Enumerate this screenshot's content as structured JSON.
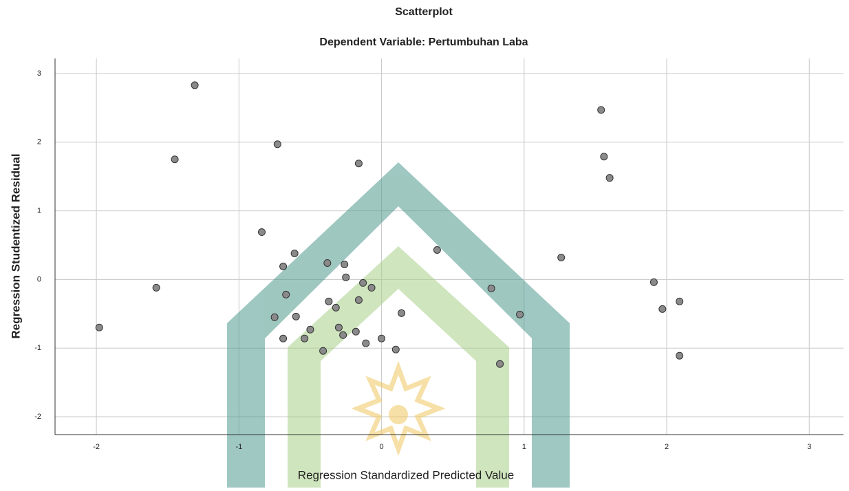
{
  "chart_data": {
    "type": "scatter",
    "title": "Scatterplot",
    "subtitle": "Dependent Variable: Pertumbuhan Laba",
    "x_label": "Regression Standardized Predicted Value",
    "y_label": "Regression Studentized Residual",
    "grid": true,
    "xlim": [
      -2.29,
      3.24
    ],
    "ylim": [
      -2.26,
      3.22
    ],
    "xticks": [
      -2,
      -1,
      0,
      1,
      2,
      3
    ],
    "yticks": [
      -2,
      -1,
      0,
      1,
      2,
      3
    ],
    "series": [
      {
        "color": "#8a8a8a",
        "x": [
          -1.98,
          -1.58,
          -1.45,
          -1.31,
          -0.84,
          -0.73,
          -0.61,
          -0.69,
          -0.67,
          -0.75,
          -0.69,
          -0.6,
          -0.54,
          -0.5,
          -0.41,
          -0.38,
          -0.37,
          -0.32,
          -0.3,
          -0.27,
          -0.26,
          -0.25,
          -0.18,
          -0.16,
          -0.16,
          -0.13,
          -0.11,
          -0.07,
          0.0,
          0.1,
          0.14,
          0.39,
          0.77,
          0.83,
          0.97,
          1.26,
          1.54,
          1.56,
          1.6,
          1.91,
          1.97,
          2.09,
          2.09
        ],
        "values": [
          -0.7,
          -0.12,
          1.75,
          2.83,
          0.69,
          1.97,
          0.38,
          0.19,
          -0.22,
          -0.55,
          -0.86,
          -0.54,
          -0.86,
          -0.73,
          -1.04,
          0.24,
          -0.32,
          -0.41,
          -0.7,
          -0.81,
          0.22,
          0.03,
          -0.76,
          1.69,
          -0.3,
          -0.05,
          -0.93,
          -0.12,
          -0.86,
          -1.02,
          -0.49,
          0.43,
          -0.13,
          -1.23,
          -0.51,
          0.32,
          2.47,
          1.79,
          1.48,
          -0.04,
          -0.43,
          -0.32,
          -1.11
        ]
      }
    ]
  }
}
